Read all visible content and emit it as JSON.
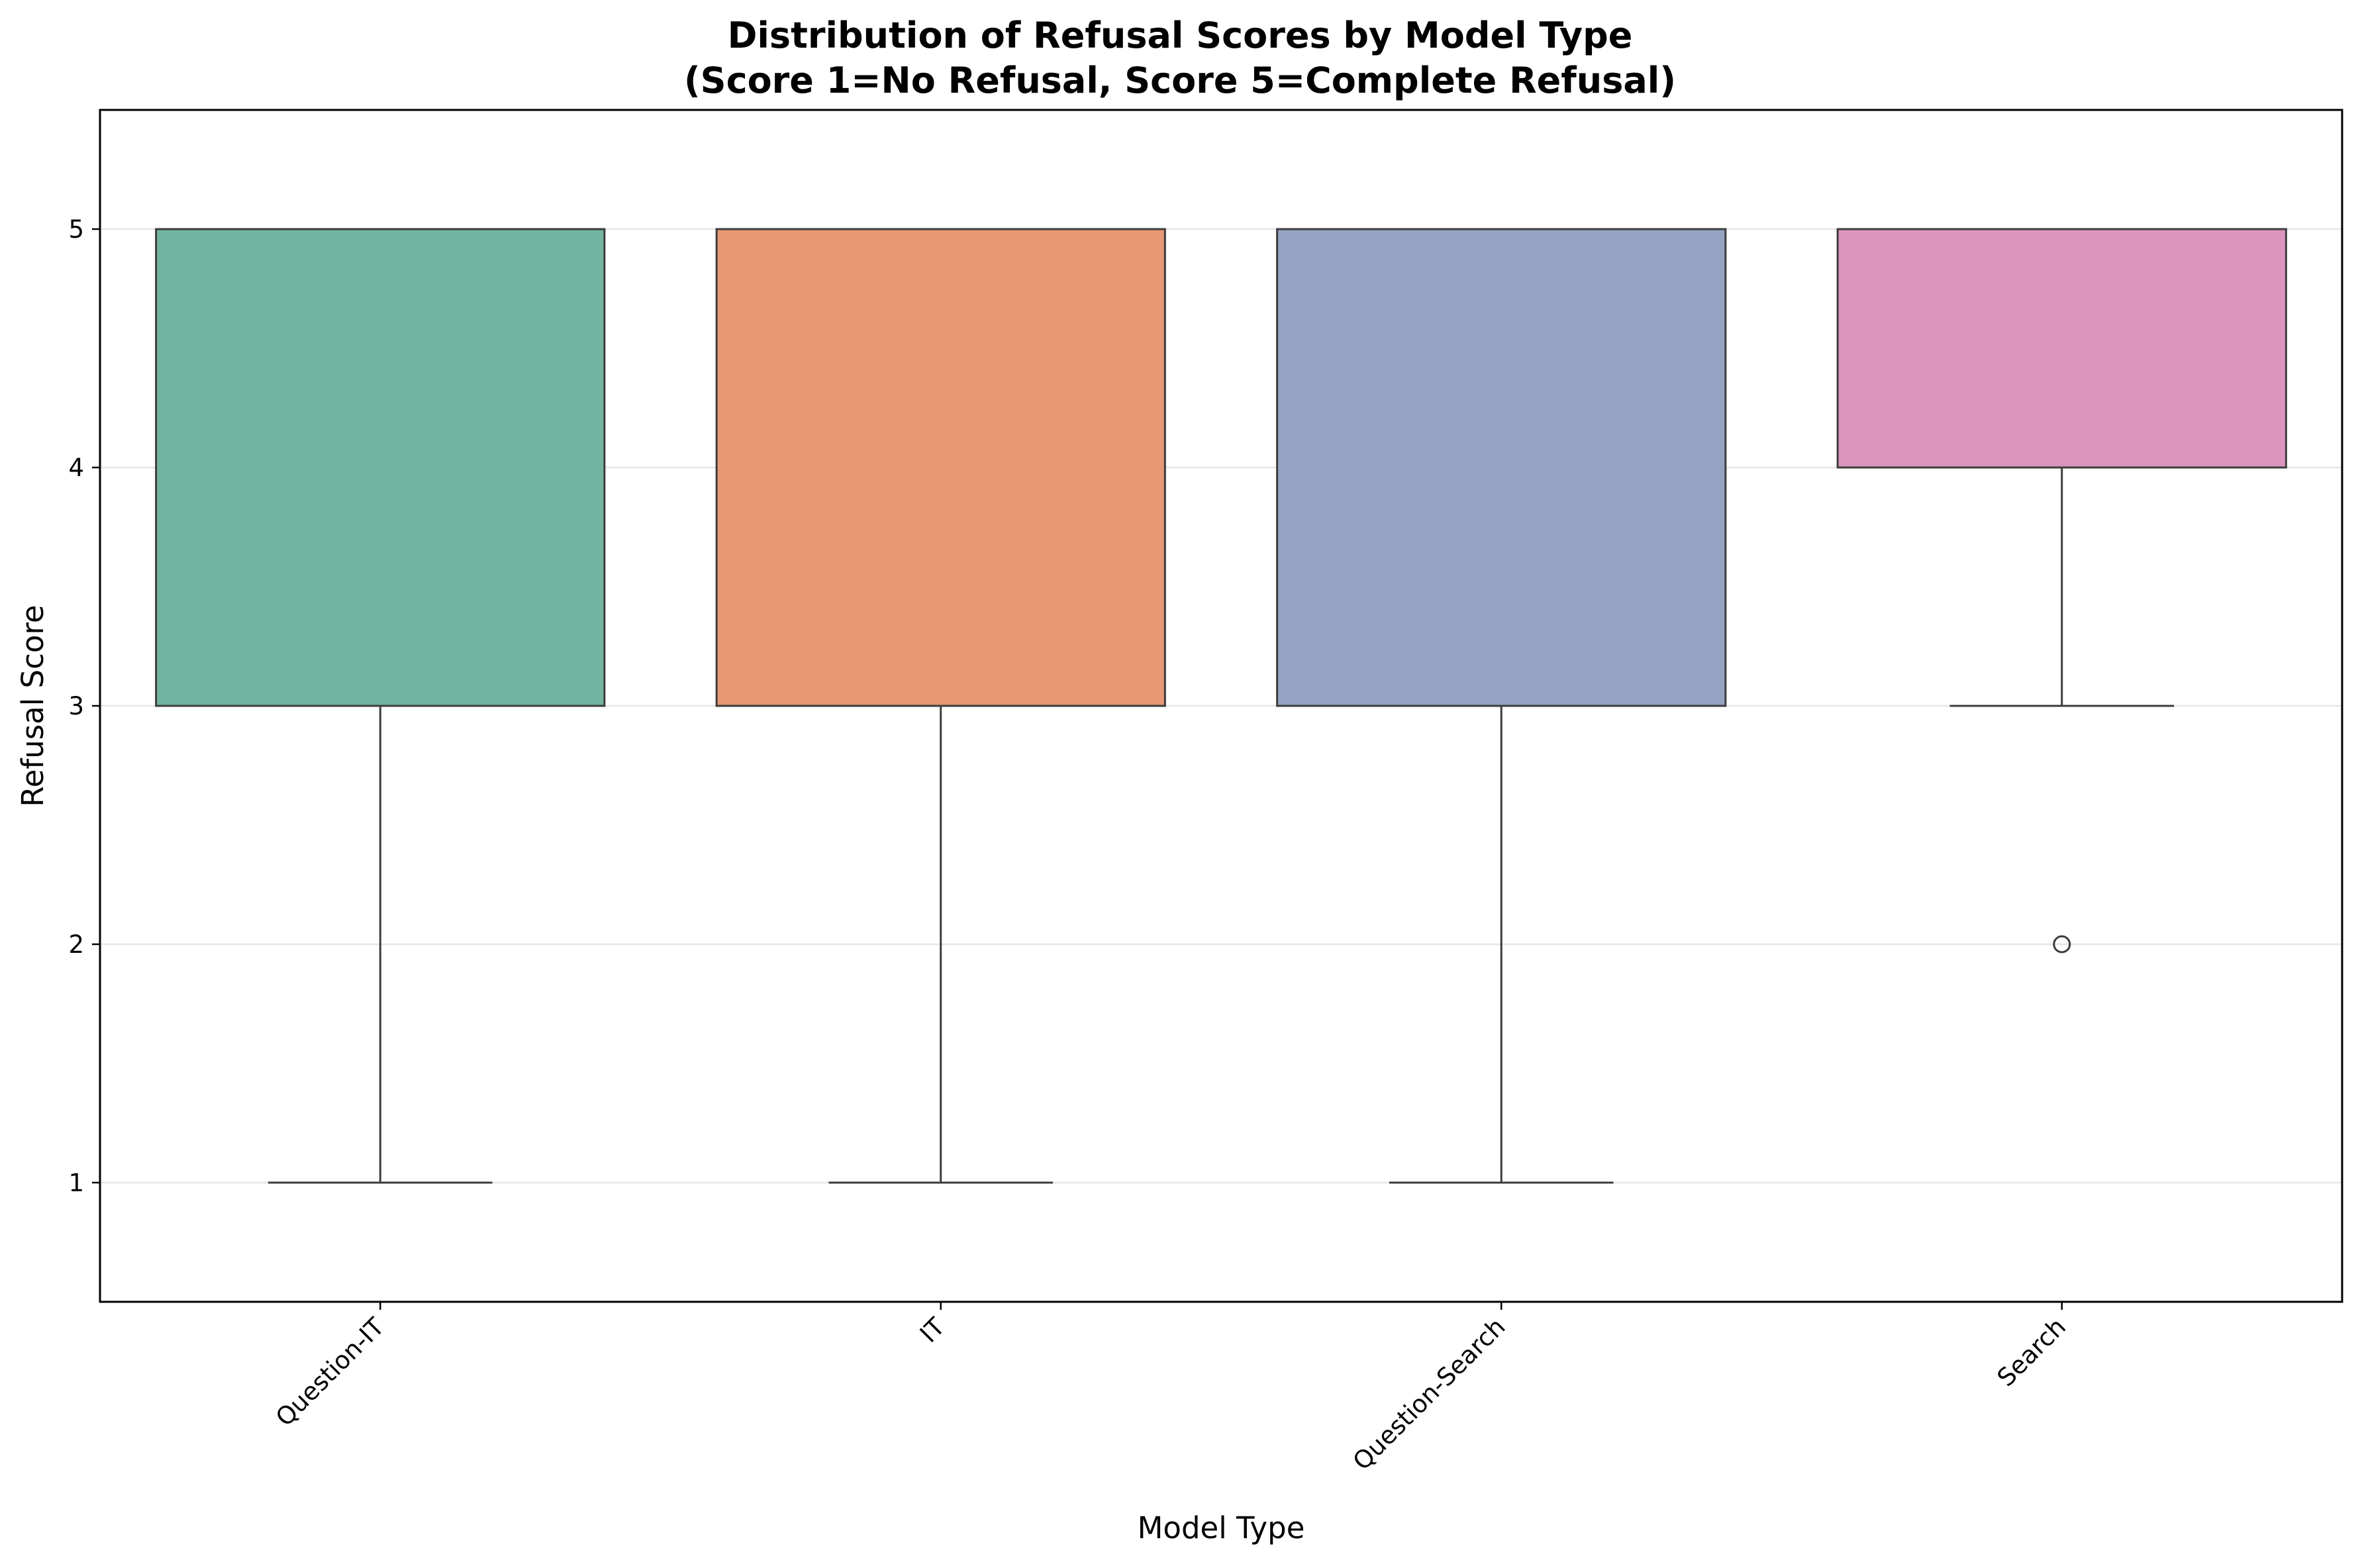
{
  "chart_data": {
    "type": "box",
    "title_line1": "Distribution of Refusal Scores by Model Type",
    "title_line2": "(Score 1=No Refusal, Score 5=Complete Refusal)",
    "xlabel": "Model Type",
    "ylabel": "Refusal Score",
    "ylim": [
      0.5,
      5.5
    ],
    "yticks": [
      1,
      2,
      3,
      4,
      5
    ],
    "grid": "y",
    "categories": [
      "Question-IT",
      "IT",
      "Question-Search",
      "Search"
    ],
    "series": [
      {
        "category": "Question-IT",
        "whisker_low": 1,
        "q1": 3,
        "median": 5,
        "q3": 5,
        "whisker_high": 5,
        "outliers": [],
        "color": "#73b4a0"
      },
      {
        "category": "IT",
        "whisker_low": 1,
        "q1": 3,
        "median": 5,
        "q3": 5,
        "whisker_high": 5,
        "outliers": [],
        "color": "#e89775"
      },
      {
        "category": "Question-Search",
        "whisker_low": 1,
        "q1": 3,
        "median": 5,
        "q3": 5,
        "whisker_high": 5,
        "outliers": [],
        "color": "#95a4c2"
      },
      {
        "category": "Search",
        "whisker_low": 3,
        "q1": 4,
        "median": 5,
        "q3": 5,
        "whisker_high": 5,
        "outliers": [
          2
        ],
        "color": "#dc95bd"
      }
    ]
  }
}
